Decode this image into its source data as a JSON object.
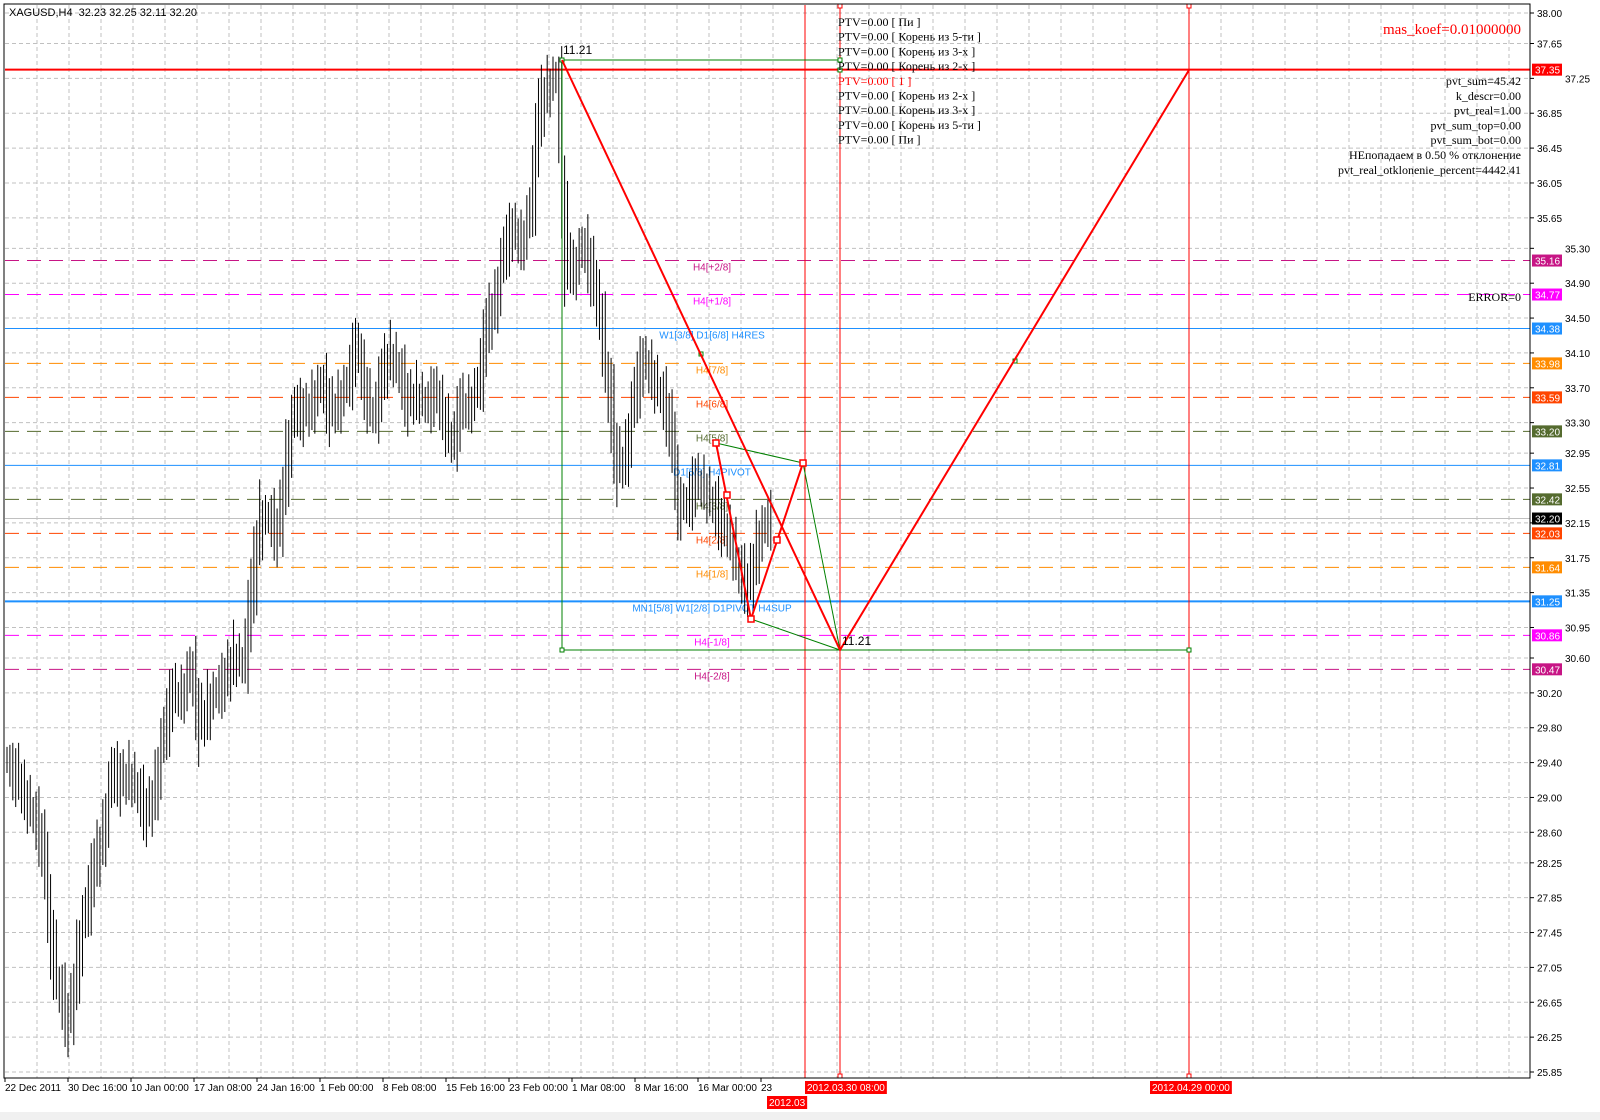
{
  "header": {
    "symbol": "XAGUSD,H4",
    "ohlc": "32.23 32.25 32.11 32.20"
  },
  "chart_data": {
    "type": "bar",
    "title": "XAGUSD,H4",
    "ylim": [
      25.85,
      38.0
    ],
    "y_ticks": [
      "38.00",
      "37.65",
      "37.25",
      "36.85",
      "36.45",
      "36.05",
      "35.65",
      "35.30",
      "34.90",
      "34.50",
      "34.10",
      "33.70",
      "33.30",
      "32.95",
      "32.55",
      "32.15",
      "31.75",
      "31.35",
      "30.95",
      "30.60",
      "30.20",
      "29.80",
      "29.40",
      "29.00",
      "28.60",
      "28.25",
      "27.85",
      "27.45",
      "27.05",
      "26.65",
      "26.25",
      "25.85"
    ],
    "x_ticks": [
      "22 Dec 2011",
      "30 Dec 16:00",
      "10 Jan 00:00",
      "17 Jan 08:00",
      "24 Jan 16:00",
      "1 Feb 00:00",
      "8 Feb 08:00",
      "15 Feb 16:00",
      "23 Feb 00:00",
      "1 Mar 08:00",
      "8 Mar 16:00",
      "16 Mar 00:00",
      "23"
    ],
    "grid": true,
    "price_series": [
      29.43,
      29.2,
      28.97,
      28.74,
      28.4,
      27.14,
      26.68,
      26.33,
      27.25,
      27.82,
      28.28,
      28.63,
      29.43,
      29.09,
      29.31,
      28.97,
      28.74,
      29.2,
      29.89,
      30.23,
      30.12,
      30.58,
      29.66,
      30.12,
      30.23,
      30.35,
      30.69,
      30.46,
      31.49,
      32.3,
      32.18,
      31.95,
      32.99,
      33.56,
      33.33,
      33.56,
      33.79,
      33.33,
      33.56,
      33.79,
      34.25,
      33.56,
      33.33,
      33.9,
      34.13,
      33.79,
      33.45,
      33.67,
      33.45,
      33.67,
      33.33,
      32.99,
      33.56,
      33.45,
      33.79,
      34.48,
      34.71,
      35.4,
      35.51,
      35.28,
      35.85,
      37.0,
      37.17,
      37.29,
      34.94,
      35.05,
      35.4,
      34.94,
      34.48,
      33.45,
      32.64,
      32.99,
      33.79,
      34.02,
      33.79,
      33.56,
      33.22,
      32.18,
      32.41,
      32.64,
      32.53,
      32.3,
      32.07,
      31.95,
      31.49,
      31.38,
      31.95,
      32.18
    ],
    "current_price": {
      "value": "32.20",
      "color": "#000000"
    },
    "levels": [
      {
        "price": 37.35,
        "label_price": "37.35",
        "color": "#ff0000",
        "style": "solid",
        "label": ""
      },
      {
        "price": 35.16,
        "label_price": "35.16",
        "color": "#c71585",
        "style": "dashed",
        "label": "H4[+2/8]"
      },
      {
        "price": 34.77,
        "label_price": "34.77",
        "color": "#ff00ff",
        "style": "dashed",
        "label": "H4[+1/8]"
      },
      {
        "price": 34.38,
        "label_price": "34.38",
        "color": "#1e90ff",
        "style": "solid",
        "label": "W1[3/8] D1[6/8] H4RES"
      },
      {
        "price": 33.98,
        "label_price": "33.98",
        "color": "#ff8c00",
        "style": "dashed",
        "label": "H4[7/8]"
      },
      {
        "price": 33.59,
        "label_price": "33.59",
        "color": "#ff4500",
        "style": "dashed",
        "label": "H4[6/8]"
      },
      {
        "price": 33.2,
        "label_price": "33.20",
        "color": "#556b2f",
        "style": "dashed",
        "label": "H4[5/8]"
      },
      {
        "price": 32.81,
        "label_price": "32.81",
        "color": "#1e90ff",
        "style": "solid",
        "label": "D1[5/8] H4PIVOT"
      },
      {
        "price": 32.42,
        "label_price": "32.42",
        "color": "#556b2f",
        "style": "dashed",
        "label": "H4[3/8]"
      },
      {
        "price": 32.03,
        "label_price": "32.03",
        "color": "#ff4500",
        "style": "dashed",
        "label": "H4[2/8]"
      },
      {
        "price": 31.64,
        "label_price": "31.64",
        "color": "#ff8c00",
        "style": "dashed",
        "label": "H4[1/8]"
      },
      {
        "price": 31.25,
        "label_price": "31.25",
        "color": "#1e90ff",
        "style": "solid",
        "label": "MN1[5/8] W1[2/8] D1PIVOT  H4SUP"
      },
      {
        "price": 30.86,
        "label_price": "30.86",
        "color": "#ff00ff",
        "style": "dashed",
        "label": "H4[-1/8]"
      },
      {
        "price": 30.47,
        "label_price": "30.47",
        "color": "#c71585",
        "style": "dashed",
        "label": "H4[-2/8]"
      }
    ],
    "vertical_lines": [
      {
        "label": "2012.03",
        "color": "#ff0000"
      },
      {
        "label": "2012.03.30 08:00",
        "color": "#ff0000"
      },
      {
        "label": "2012.04.29 00:00",
        "color": "#ff0000"
      }
    ],
    "annotations": {
      "top_value": "11.21",
      "bottom_value": "11.21"
    }
  },
  "ptv_lines": [
    {
      "text": "PTV=0.00 [ Пи ]",
      "color": "#000000"
    },
    {
      "text": "PTV=0.00 [ Корень из 5-ти ]",
      "color": "#000000"
    },
    {
      "text": "PTV=0.00 [ Корень из 3-х ]",
      "color": "#000000"
    },
    {
      "text": "PTV=0.00 [ Корень из 2-х ]",
      "color": "#000000"
    },
    {
      "text": "PTV=0.00 [ 1 ]",
      "color": "#ff0000"
    },
    {
      "text": "PTV=0.00 [ Корень из 2-х ]",
      "color": "#000000"
    },
    {
      "text": "PTV=0.00 [ Корень из 3-х ]",
      "color": "#000000"
    },
    {
      "text": "PTV=0.00 [ Корень из 5-ти ]",
      "color": "#000000"
    },
    {
      "text": "PTV=0.00 [ Пи ]",
      "color": "#000000"
    }
  ],
  "info": {
    "mas_koef": "mas_koef=0.01000000",
    "lines": [
      "pvt_sum=45.42",
      "k_descr=0.00",
      "pvt_real=1.00",
      "pvt_sum_top=0.00",
      "pvt_sum_bot=0.00",
      "НЕпопадаем в 0.50 % отклонение",
      "pvt_real_otklonenie_percent=4442.41"
    ],
    "error": "ERROR=0"
  },
  "colors": {
    "accent": "#ff0000",
    "bars": "#000000",
    "grid": "#c0c0c0",
    "fibo": "#008000"
  }
}
